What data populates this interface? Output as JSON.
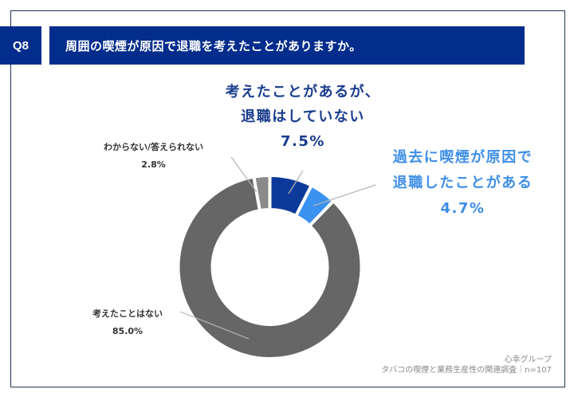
{
  "header": {
    "question_number": "Q8",
    "question_text": "周囲の喫煙が原因で退職を考えたことがありますか。"
  },
  "chart_data": {
    "type": "pie",
    "variant": "donut",
    "title": "周囲の喫煙が原因で退職を考えたことがありますか。",
    "start_angle": "12 o'clock, clockwise",
    "categories": [
      "考えたことがあるが、退職はしていない",
      "過去に喫煙が原因で退職したことがある",
      "考えたことはない",
      "わからない/答えられない"
    ],
    "values": [
      7.5,
      4.7,
      85.0,
      2.8
    ],
    "colors": [
      "#0b3a9a",
      "#3a91f0",
      "#666666",
      "#8a8a8a"
    ],
    "n": 107
  },
  "labels": {
    "considered": {
      "line1": "考えたことがあるが、",
      "line2": "退職はしていない",
      "pct": "7.5%"
    },
    "quit": {
      "line1": "過去に喫煙が原因で",
      "line2": "退職したことがある",
      "pct": "4.7%"
    },
    "never": {
      "line1": "考えたことはない",
      "pct": "85.0%"
    },
    "unknown": {
      "line1": "わからない/答えられない",
      "pct": "2.8%"
    }
  },
  "footer": {
    "organization": "心幸グループ",
    "survey": "タバコの喫煙と業務生産性の関連調査｜n=107"
  }
}
